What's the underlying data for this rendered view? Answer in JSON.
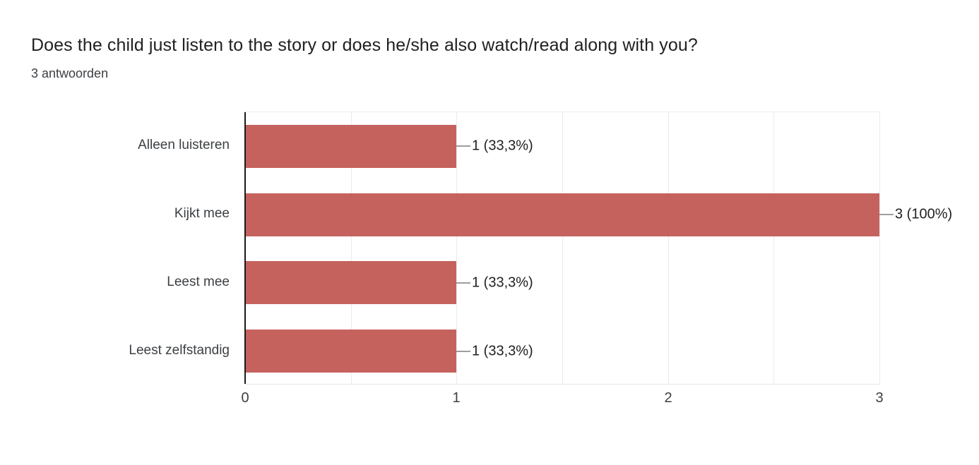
{
  "header": {
    "title": "Does the child just listen to the story or does he/she also watch/read along with you?",
    "subtitle": "3 antwoorden"
  },
  "colors": {
    "bar": "#c5625e",
    "axis_line": "#1a1a1a",
    "gridline": "#ebebeb",
    "connector_stem": "#9e9e9e",
    "title_text": "#212121",
    "category_text": "#3c4043",
    "value_text": "#212121",
    "tick_text": "#3c4043",
    "background": "#ffffff"
  },
  "chart_data": {
    "type": "bar",
    "orientation": "horizontal",
    "title": "Does the child just listen to the story or does he/she also watch/read along with you?",
    "subtitle": "3 antwoorden",
    "categories": [
      "Alleen luisteren",
      "Kijkt mee",
      "Leest mee",
      "Leest zelfstandig"
    ],
    "values": [
      1,
      3,
      1,
      1
    ],
    "value_labels": [
      "1 (33,3%)",
      "3 (100%)",
      "1 (33,3%)",
      "1 (33,3%)"
    ],
    "xlabel": "",
    "ylabel": "",
    "xlim": [
      0,
      3
    ],
    "x_ticks": [
      "0",
      "1",
      "2",
      "3"
    ],
    "x_tick_values": [
      0,
      1,
      2,
      3
    ],
    "gridline_interval": 0.5,
    "grid": true,
    "legend": false
  }
}
